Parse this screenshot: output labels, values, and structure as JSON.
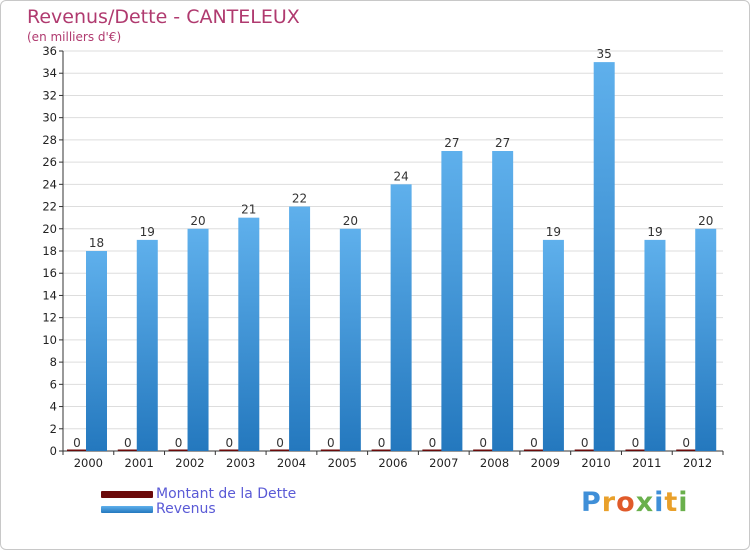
{
  "title": "Revenus/Dette - CANTELEUX",
  "subtitle": "(en milliers d'€)",
  "colors": {
    "dette": "#6b0a0a",
    "revenus_light": "#5fb0ec",
    "revenus_dark": "#2478be",
    "title": "#b03a6f",
    "legend_text": "#5a5ad6",
    "grid": "#dddddd"
  },
  "chart_data": {
    "type": "bar",
    "title": "Revenus/Dette - CANTELEUX",
    "subtitle": "(en milliers d'€)",
    "xlabel": "",
    "ylabel": "",
    "categories": [
      "2000",
      "2001",
      "2002",
      "2003",
      "2004",
      "2005",
      "2006",
      "2007",
      "2008",
      "2009",
      "2010",
      "2011",
      "2012"
    ],
    "series": [
      {
        "name": "Montant de la Dette",
        "values": [
          0,
          0,
          0,
          0,
          0,
          0,
          0,
          0,
          0,
          0,
          0,
          0,
          0
        ]
      },
      {
        "name": "Revenus",
        "values": [
          18,
          19,
          20,
          21,
          22,
          20,
          24,
          27,
          27,
          19,
          35,
          19,
          20
        ]
      }
    ],
    "ylim": [
      0,
      36
    ],
    "yticks": [
      0,
      2,
      4,
      6,
      8,
      10,
      12,
      14,
      16,
      18,
      20,
      22,
      24,
      26,
      28,
      30,
      32,
      34,
      36
    ],
    "grid": true,
    "legend_position": "bottom-left"
  },
  "legend": {
    "items": [
      {
        "label": "Montant de la Dette"
      },
      {
        "label": "Revenus"
      }
    ]
  },
  "logo": {
    "text": "Proxiti"
  }
}
